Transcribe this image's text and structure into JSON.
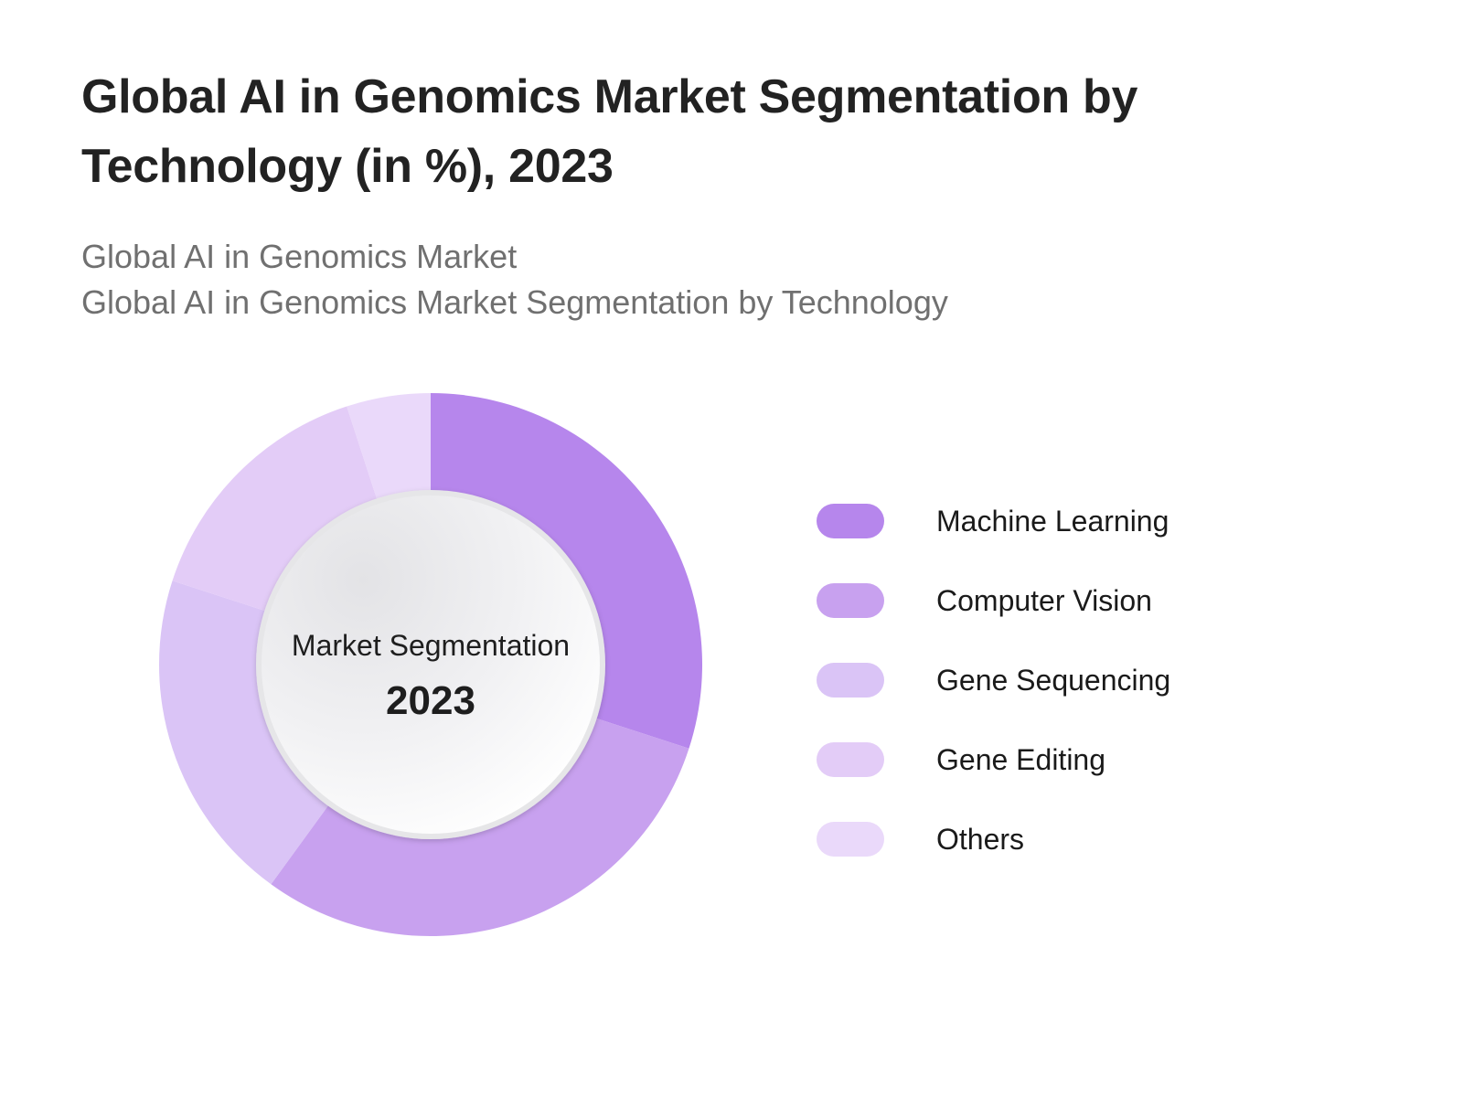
{
  "title": "Global AI in Genomics Market Segmentation by Technology (in %), 2023",
  "subtitles": [
    "Global AI in Genomics Market",
    "Global AI in Genomics Market Segmentation by Technology"
  ],
  "center": {
    "label": "Market Segmentation",
    "year": "2023"
  },
  "chart_data": {
    "type": "pie",
    "variant": "donut",
    "title": "Global AI in Genomics Market Segmentation by Technology (in %), 2023",
    "unit": "%",
    "legend_position": "right",
    "categories": [
      "Machine Learning",
      "Computer Vision",
      "Gene Sequencing",
      "Gene Editing",
      "Others"
    ],
    "values": [
      30,
      30,
      20,
      15,
      5
    ],
    "colors": [
      "#b686ec",
      "#c8a1ef",
      "#dac4f6",
      "#e3ccf7",
      "#ead9fa"
    ]
  }
}
